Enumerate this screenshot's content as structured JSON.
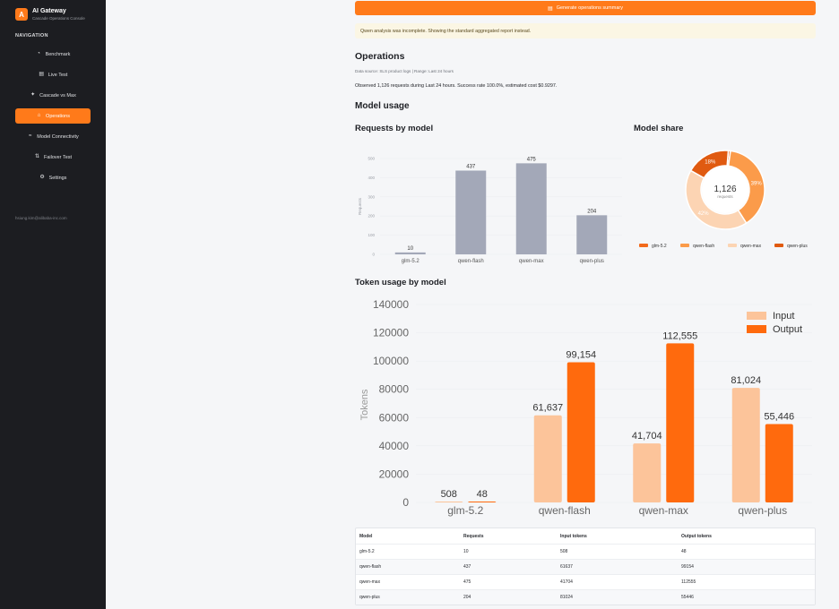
{
  "app": {
    "logo_letter": "A",
    "title": "AI Gateway",
    "subtitle": "Cascade Operations Console",
    "nav_heading": "NAVIGATION",
    "nav": [
      {
        "label": "Benchmark",
        "icon": "gauge-icon",
        "glyph": "◔"
      },
      {
        "label": "Live Test",
        "icon": "message-icon",
        "glyph": "▤"
      },
      {
        "label": "Cascade vs Max",
        "icon": "sparkle-icon",
        "glyph": "✦"
      },
      {
        "label": "Operations",
        "icon": "operations-icon",
        "glyph": "⌂"
      },
      {
        "label": "Model Connectivity",
        "icon": "wifi-icon",
        "glyph": "≈"
      },
      {
        "label": "Failover Test",
        "icon": "failover-icon",
        "glyph": "⇅"
      },
      {
        "label": "Settings",
        "icon": "gear-icon",
        "glyph": "⚙"
      }
    ],
    "active_nav": "Operations",
    "user_email": "hsiung.kim@alibaba-inc.com"
  },
  "main": {
    "generate_button": "Generate operations summary",
    "warning": "Qwen analysis was incomplete. Showing the standard aggregated report instead.",
    "heading": "Operations",
    "data_source": "Data source: SLS product logs | Range: Last 24 hours",
    "observed": "Observed 1,126 requests during Last 24 hours. Success rate 100.0%, estimated cost $0.9297.",
    "model_usage_heading": "Model usage",
    "requests_heading": "Requests by model",
    "share_heading": "Model share",
    "token_heading": "Token usage by model"
  },
  "colors": {
    "accent": "#ff7a1a",
    "bar_gray": "#a3a8b8",
    "input": "#fcc49a",
    "output": "#ff6a0d",
    "share": [
      "#f26a1b",
      "#fb9b4a",
      "#fcd4b3",
      "#e05a10"
    ]
  },
  "chart_data": [
    {
      "type": "bar",
      "title": "Requests by model",
      "categories": [
        "glm-5.2",
        "qwen-flash",
        "qwen-max",
        "qwen-plus"
      ],
      "values": [
        10,
        437,
        475,
        204
      ],
      "ylabel": "Requests",
      "ylim": [
        0,
        500
      ],
      "yticks": [
        0,
        100,
        200,
        300,
        400,
        500
      ],
      "grid": true
    },
    {
      "type": "pie",
      "title": "Model share",
      "categories": [
        "glm-5.2",
        "qwen-flash",
        "qwen-max",
        "qwen-plus"
      ],
      "values": [
        10,
        437,
        475,
        204
      ],
      "slice_labels": [
        "",
        "39%",
        "42%",
        "18%"
      ],
      "center_total": "1,126",
      "center_label": "requests",
      "legend": "bottom"
    },
    {
      "type": "bar",
      "title": "Token usage by model",
      "categories": [
        "glm-5.2",
        "qwen-flash",
        "qwen-max",
        "qwen-plus"
      ],
      "series": [
        {
          "name": "Input",
          "values": [
            508,
            61637,
            41704,
            81024
          ],
          "labels": [
            "508",
            "61,637",
            "41,704",
            "81,024"
          ]
        },
        {
          "name": "Output",
          "values": [
            48,
            99154,
            112555,
            55446
          ],
          "labels": [
            "48",
            "99,154",
            "112,555",
            "55,446"
          ]
        }
      ],
      "ylabel": "Tokens",
      "ylim": [
        0,
        140000
      ],
      "yticks": [
        0,
        20000,
        40000,
        60000,
        80000,
        100000,
        120000,
        140000
      ],
      "legend": "top-right",
      "grid": true
    }
  ],
  "table": {
    "headers": [
      "Model",
      "Requests",
      "Input tokens",
      "Output tokens"
    ],
    "rows": [
      [
        "glm-5.2",
        "10",
        "508",
        "48"
      ],
      [
        "qwen-flash",
        "437",
        "61637",
        "99154"
      ],
      [
        "qwen-max",
        "475",
        "41704",
        "112555"
      ],
      [
        "qwen-plus",
        "204",
        "81024",
        "55446"
      ]
    ]
  }
}
